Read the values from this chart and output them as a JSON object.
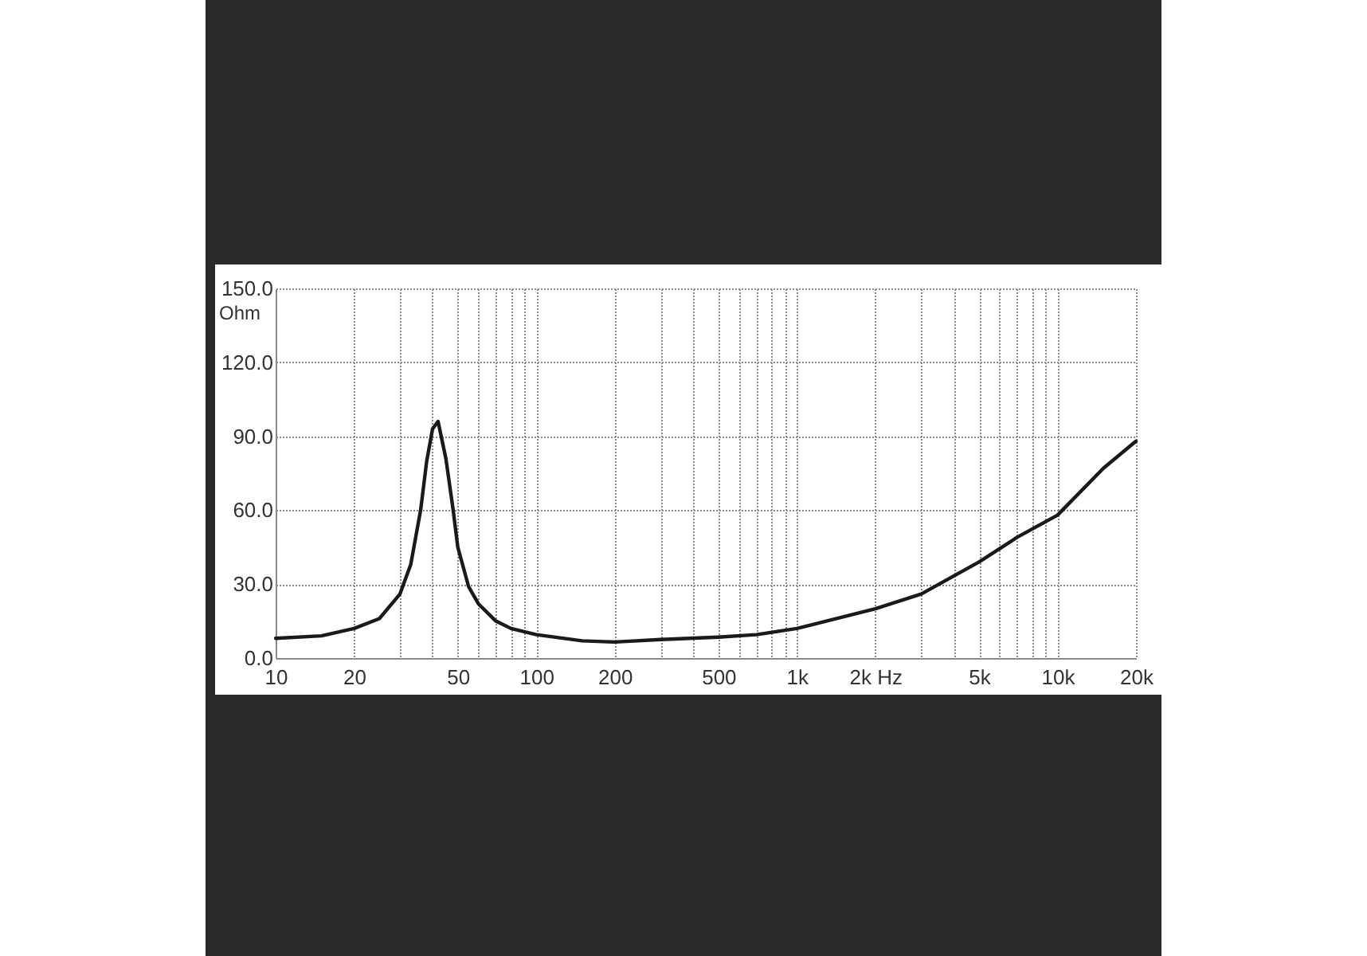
{
  "chart_data": {
    "type": "line",
    "ylabel": "Ohm",
    "log": "x",
    "grid": true,
    "x": [
      10,
      15,
      20,
      25,
      30,
      33,
      36,
      38,
      40,
      42,
      45,
      48,
      50,
      55,
      60,
      70,
      80,
      100,
      150,
      200,
      300,
      500,
      700,
      1000,
      2000,
      3000,
      5000,
      7000,
      10000,
      15000,
      20000
    ],
    "series": [
      {
        "color": "#1a1a1a",
        "values": [
          8,
          9,
          12,
          16,
          26,
          38,
          60,
          80,
          93,
          96,
          81,
          60,
          45,
          29,
          22,
          15,
          12,
          9.5,
          7,
          6.5,
          7.5,
          8.5,
          9.5,
          12,
          20,
          26,
          39,
          49,
          58,
          77,
          88
        ]
      }
    ],
    "xlim": [
      10,
      20000
    ],
    "ylim": [
      0,
      150
    ],
    "xticks": [
      10,
      20,
      {
        "value": 30,
        "label": null
      },
      {
        "value": 40,
        "label": null
      },
      50,
      {
        "value": 60,
        "label": null
      },
      {
        "value": 70,
        "label": null
      },
      {
        "value": 80,
        "label": null
      },
      {
        "value": 90,
        "label": null
      },
      100,
      200,
      {
        "value": 300,
        "label": null
      },
      {
        "value": 400,
        "label": null
      },
      500,
      {
        "value": 600,
        "label": null
      },
      {
        "value": 700,
        "label": null
      },
      {
        "value": 800,
        "label": null
      },
      {
        "value": 900,
        "label": null
      },
      {
        "value": 1000,
        "label": "1k"
      },
      {
        "value": 2000,
        "label": "2k Hz"
      },
      {
        "value": 3000,
        "label": null
      },
      {
        "value": 4000,
        "label": null
      },
      {
        "value": 5000,
        "label": "5k"
      },
      {
        "value": 6000,
        "label": null
      },
      {
        "value": 7000,
        "label": null
      },
      {
        "value": 8000,
        "label": null
      },
      {
        "value": 9000,
        "label": null
      },
      {
        "value": 10000,
        "label": "10k"
      },
      {
        "value": 20000,
        "label": "20k"
      }
    ],
    "yticks": [
      {
        "value": 0,
        "label": "0.0"
      },
      {
        "value": 30,
        "label": "30.0"
      },
      {
        "value": 60,
        "label": "60.0"
      },
      {
        "value": 90,
        "label": "90.0"
      },
      {
        "value": 120,
        "label": "120.0"
      },
      {
        "value": 150,
        "label": "150.0"
      }
    ]
  }
}
